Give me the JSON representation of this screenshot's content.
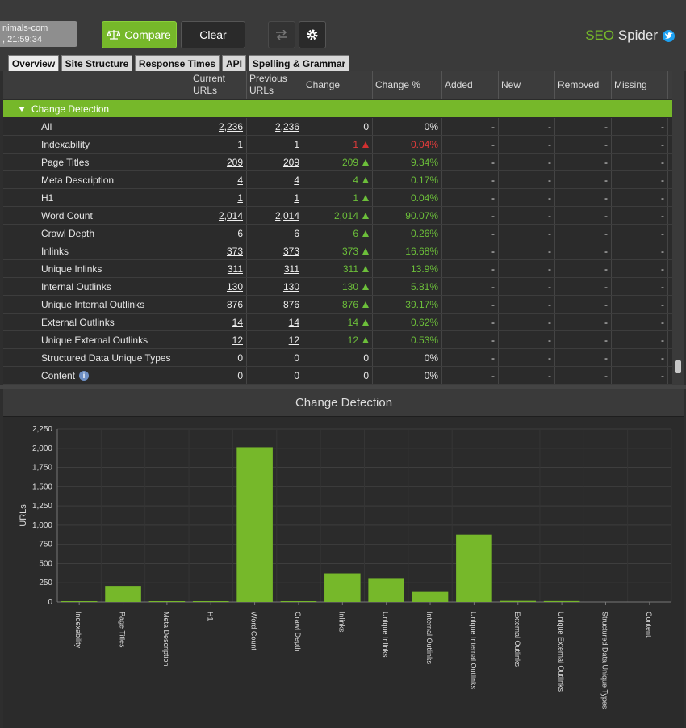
{
  "crawl": {
    "line1": "nimals-com",
    "line2": ", 21:59:34"
  },
  "toolbar": {
    "compare_label": "Compare",
    "clear_label": "Clear"
  },
  "brand": {
    "seo": "SEO",
    "spider": "Spider"
  },
  "tabs": [
    "Overview",
    "Site Structure",
    "Response Times",
    "API",
    "Spelling & Grammar"
  ],
  "columns": {
    "current": [
      "Current",
      "URLs"
    ],
    "previous": [
      "Previous",
      "URLs"
    ],
    "change": "Change",
    "change_pct": "Change %",
    "added": "Added",
    "new": "New",
    "removed": "Removed",
    "missing": "Missing"
  },
  "section_label": "Change Detection",
  "rows": [
    {
      "label": "All",
      "current": "2,236",
      "previous": "2,236",
      "change": "0",
      "pct": "0%",
      "trend": "none",
      "link": true
    },
    {
      "label": "Indexability",
      "current": "1",
      "previous": "1",
      "change": "1",
      "pct": "0.04%",
      "trend": "up-red",
      "link": true
    },
    {
      "label": "Page Titles",
      "current": "209",
      "previous": "209",
      "change": "209",
      "pct": "9.34%",
      "trend": "up",
      "link": true
    },
    {
      "label": "Meta Description",
      "current": "4",
      "previous": "4",
      "change": "4",
      "pct": "0.17%",
      "trend": "up",
      "link": true
    },
    {
      "label": "H1",
      "current": "1",
      "previous": "1",
      "change": "1",
      "pct": "0.04%",
      "trend": "up",
      "link": true
    },
    {
      "label": "Word Count",
      "current": "2,014",
      "previous": "2,014",
      "change": "2,014",
      "pct": "90.07%",
      "trend": "up",
      "link": true
    },
    {
      "label": "Crawl Depth",
      "current": "6",
      "previous": "6",
      "change": "6",
      "pct": "0.26%",
      "trend": "up",
      "link": true
    },
    {
      "label": "Inlinks",
      "current": "373",
      "previous": "373",
      "change": "373",
      "pct": "16.68%",
      "trend": "up",
      "link": true
    },
    {
      "label": "Unique Inlinks",
      "current": "311",
      "previous": "311",
      "change": "311",
      "pct": "13.9%",
      "trend": "up",
      "link": true
    },
    {
      "label": "Internal Outlinks",
      "current": "130",
      "previous": "130",
      "change": "130",
      "pct": "5.81%",
      "trend": "up",
      "link": true
    },
    {
      "label": "Unique Internal Outlinks",
      "current": "876",
      "previous": "876",
      "change": "876",
      "pct": "39.17%",
      "trend": "up",
      "link": true
    },
    {
      "label": "External Outlinks",
      "current": "14",
      "previous": "14",
      "change": "14",
      "pct": "0.62%",
      "trend": "up",
      "link": true
    },
    {
      "label": "Unique External Outlinks",
      "current": "12",
      "previous": "12",
      "change": "12",
      "pct": "0.53%",
      "trend": "up",
      "link": true
    },
    {
      "label": "Structured Data Unique Types",
      "current": "0",
      "previous": "0",
      "change": "0",
      "pct": "0%",
      "trend": "none",
      "link": false
    },
    {
      "label": "Content",
      "current": "0",
      "previous": "0",
      "change": "0",
      "pct": "0%",
      "trend": "none",
      "link": false,
      "info": true
    }
  ],
  "dash": "-",
  "info_glyph": "i",
  "chart_title": "Change Detection",
  "chart_data": {
    "type": "bar",
    "ylabel": "URLs",
    "xlabel": "",
    "ylim": [
      0,
      2250
    ],
    "yticks": [
      "0",
      "250",
      "500",
      "750",
      "1,000",
      "1,250",
      "1,500",
      "1,750",
      "2,000",
      "2,250"
    ],
    "categories": [
      "Indexability",
      "Page Titles",
      "Meta Description",
      "H1",
      "Word Count",
      "Crawl Depth",
      "Inlinks",
      "Unique Inlinks",
      "Internal Outlinks",
      "Unique Internal Outlinks",
      "External Outlinks",
      "Unique External Outlinks",
      "Structured Data Unique Types",
      "Content"
    ],
    "values": [
      1,
      209,
      4,
      1,
      2014,
      6,
      373,
      311,
      130,
      876,
      14,
      12,
      0,
      0
    ],
    "grid": true,
    "bar_color": "#76b82a"
  }
}
